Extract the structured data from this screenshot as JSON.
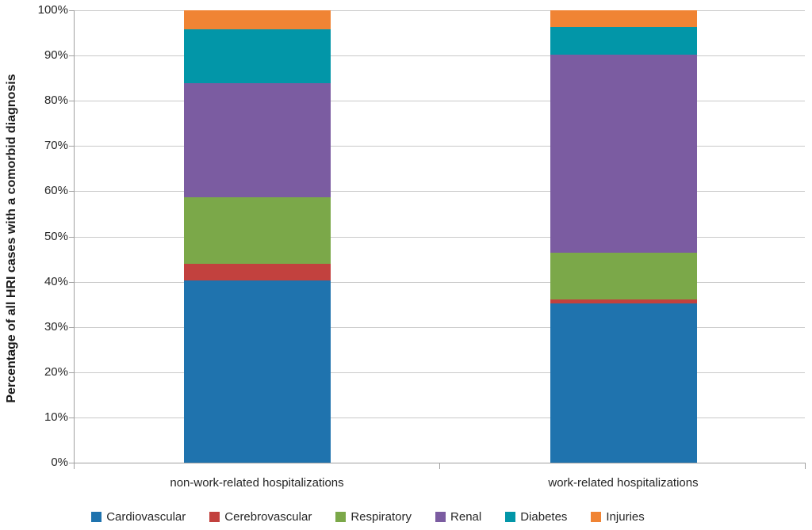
{
  "chart_data": {
    "type": "bar",
    "stacked": true,
    "percent_stacked": true,
    "title": "",
    "categories": [
      "non-work-related hospitalizations",
      "work-related hospitalizations"
    ],
    "series": [
      {
        "name": "Cardiovascular",
        "color": "#1F73AE",
        "values": [
          40.3,
          35.2
        ]
      },
      {
        "name": "Cerebrovascular",
        "color": "#C2413E",
        "values": [
          3.7,
          0.9
        ]
      },
      {
        "name": "Respiratory",
        "color": "#7BA849",
        "values": [
          14.7,
          10.3
        ]
      },
      {
        "name": "Renal",
        "color": "#7B5CA1",
        "values": [
          25.2,
          43.8
        ]
      },
      {
        "name": "Diabetes",
        "color": "#0296A8",
        "values": [
          11.9,
          6.1
        ]
      },
      {
        "name": "Injuries",
        "color": "#F08434",
        "values": [
          4.2,
          3.7
        ]
      }
    ],
    "xlabel": "",
    "ylabel": "Percentage of all HRI cases with a comorbid diagnosis",
    "ylim": [
      0,
      100
    ],
    "ytick_step": 10,
    "ytick_labels": [
      "0%",
      "10%",
      "20%",
      "30%",
      "40%",
      "50%",
      "60%",
      "70%",
      "80%",
      "90%",
      "100%"
    ],
    "grid": true,
    "legend_position": "bottom"
  },
  "palette": {
    "gridline": "#C9C9C9",
    "axis_line": "#A0A0A0",
    "text": "#262626",
    "background": "#FFFFFF"
  }
}
